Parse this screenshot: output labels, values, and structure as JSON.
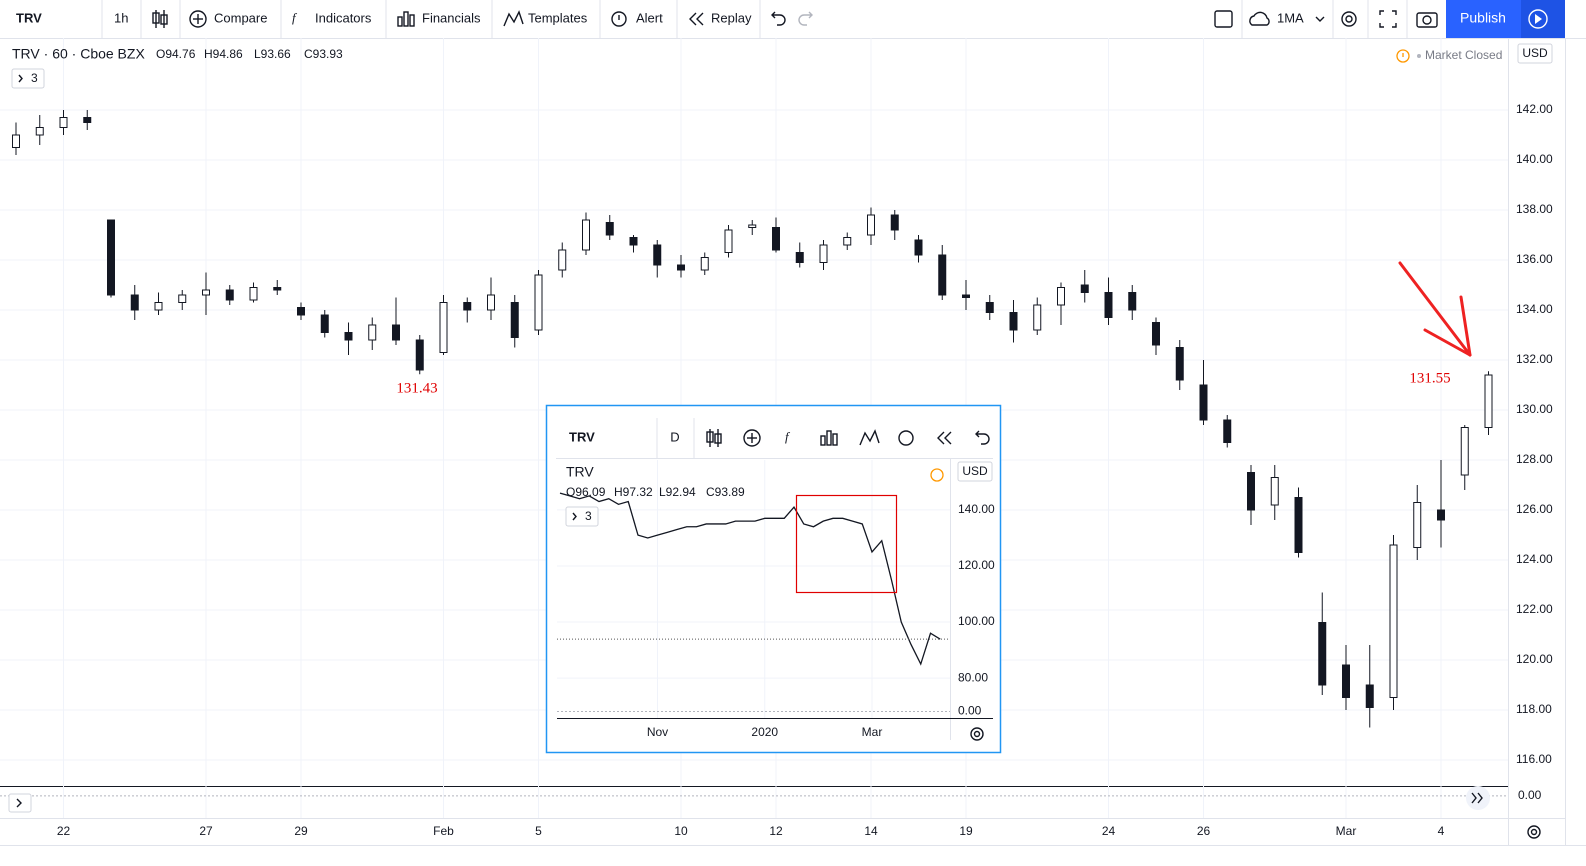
{
  "toolbar": {
    "symbol": "TRV",
    "interval": "1h",
    "items": [
      "Compare",
      "Indicators",
      "Financials",
      "Templates",
      "Alert",
      "Replay"
    ],
    "indicator": "1MA",
    "publish": "Publish"
  },
  "legend": {
    "title": "TRV · 60 · Cboe BZX",
    "ohlc": [
      "O94.76",
      "H94.86",
      "L93.66",
      "C93.93"
    ],
    "count": "3",
    "status": "Market Closed",
    "currency": "USD"
  },
  "inset": {
    "symbol": "TRV",
    "interval": "D",
    "title": "TRV",
    "ohlc": [
      "O96.09",
      "H97.32",
      "L92.94",
      "C93.89"
    ],
    "count": "3",
    "currency": "USD"
  },
  "chart_data": [
    {
      "type": "candlestick",
      "categories": [
        null,
        null,
        "22",
        null,
        null,
        null,
        null,
        null,
        "27",
        null,
        null,
        null,
        "29",
        null,
        null,
        null,
        null,
        null,
        "Feb",
        null,
        null,
        null,
        "5",
        null,
        null,
        null,
        null,
        null,
        "10",
        null,
        null,
        null,
        "12",
        null,
        null,
        null,
        "14",
        null,
        null,
        null,
        "19",
        null,
        null,
        null,
        null,
        null,
        "24",
        null,
        null,
        null,
        "26",
        null,
        null,
        null,
        null,
        null,
        "Mar",
        null,
        null,
        null,
        "4",
        null,
        null
      ],
      "open": [
        140.5,
        141.0,
        141.3,
        141.7,
        137.6,
        134.6,
        134.0,
        134.3,
        134.6,
        134.8,
        134.4,
        134.9,
        134.1,
        133.8,
        133.1,
        132.8,
        133.4,
        132.8,
        132.3,
        134.3,
        134.0,
        134.3,
        133.2,
        135.6,
        136.4,
        137.5,
        136.9,
        136.6,
        135.8,
        135.6,
        136.3,
        137.3,
        137.3,
        136.3,
        135.9,
        136.6,
        137.0,
        137.8,
        136.8,
        136.2,
        134.6,
        134.3,
        133.9,
        133.2,
        134.2,
        135.0,
        134.7,
        134.7,
        133.5,
        132.5,
        131.0,
        129.6,
        127.5,
        126.2,
        126.5,
        121.5,
        119.8,
        119.0,
        118.5,
        124.5,
        126.0,
        127.4,
        129.3
      ],
      "high": [
        141.5,
        141.8,
        142.0,
        142.0,
        137.6,
        135.0,
        134.7,
        134.8,
        135.5,
        135.0,
        135.1,
        135.2,
        134.3,
        134.0,
        133.5,
        133.7,
        134.5,
        133.0,
        134.6,
        134.5,
        135.3,
        134.6,
        135.6,
        136.7,
        137.9,
        137.8,
        137.0,
        136.8,
        136.2,
        136.3,
        137.4,
        137.6,
        137.7,
        136.7,
        136.8,
        137.1,
        138.1,
        138.0,
        137.0,
        136.6,
        135.2,
        134.6,
        134.4,
        134.5,
        135.1,
        135.6,
        135.3,
        135.0,
        133.7,
        132.8,
        132.0,
        129.8,
        127.8,
        127.8,
        126.9,
        122.7,
        120.6,
        120.6,
        125.0,
        127.0,
        128.0,
        129.4,
        131.55
      ],
      "low": [
        140.2,
        140.6,
        141.0,
        141.2,
        134.5,
        133.6,
        133.8,
        134.0,
        133.8,
        134.2,
        134.3,
        134.6,
        133.6,
        132.9,
        132.2,
        132.4,
        132.6,
        131.43,
        132.2,
        133.5,
        133.6,
        132.5,
        133.0,
        135.3,
        136.2,
        136.8,
        136.3,
        135.3,
        135.3,
        135.4,
        136.1,
        137.0,
        136.3,
        135.7,
        135.6,
        136.4,
        136.6,
        136.8,
        135.9,
        134.4,
        134.0,
        133.6,
        132.7,
        133.0,
        133.4,
        134.3,
        133.4,
        133.6,
        132.2,
        130.8,
        129.4,
        128.5,
        125.4,
        125.6,
        124.1,
        118.6,
        118.0,
        117.3,
        118.0,
        124.0,
        124.5,
        126.8,
        129.0
      ],
      "close": [
        141.0,
        141.3,
        141.7,
        141.5,
        134.6,
        134.0,
        134.3,
        134.6,
        134.8,
        134.4,
        134.9,
        134.8,
        133.8,
        133.1,
        132.8,
        133.4,
        132.8,
        131.6,
        134.3,
        134.0,
        134.6,
        132.9,
        135.4,
        136.4,
        137.6,
        137.0,
        136.6,
        135.8,
        135.6,
        136.1,
        137.2,
        137.4,
        136.4,
        135.9,
        136.6,
        136.9,
        137.8,
        137.2,
        136.2,
        134.6,
        134.5,
        133.9,
        133.2,
        134.2,
        134.9,
        134.7,
        133.7,
        134.0,
        132.6,
        131.2,
        129.6,
        128.7,
        126.0,
        127.3,
        124.3,
        119.0,
        118.5,
        118.1,
        124.6,
        126.3,
        125.6,
        129.3,
        131.4
      ],
      "ylim": [
        115,
        144.8
      ],
      "yticks": [
        {
          "value": 116,
          "label": "116.00"
        },
        {
          "value": 118,
          "label": "118.00"
        },
        {
          "value": 120,
          "label": "120.00"
        },
        {
          "value": 122,
          "label": "122.00"
        },
        {
          "value": 124,
          "label": "124.00"
        },
        {
          "value": 126,
          "label": "126.00"
        },
        {
          "value": 128,
          "label": "128.00"
        },
        {
          "value": 130,
          "label": "130.00"
        },
        {
          "value": 132,
          "label": "132.00"
        },
        {
          "value": 134,
          "label": "134.00"
        },
        {
          "value": 136,
          "label": "136.00"
        },
        {
          "value": 138,
          "label": "138.00"
        },
        {
          "value": 140,
          "label": "140.00"
        },
        {
          "value": 142,
          "label": "142.00"
        }
      ],
      "annotations": [
        "131.43",
        "131.55"
      ],
      "up_color": "#ffffff",
      "down_color": "#131722",
      "grid": true
    },
    {
      "type": "line",
      "categories": [
        null,
        null,
        null,
        null,
        null,
        null,
        null,
        null,
        null,
        null,
        "Nov",
        null,
        null,
        null,
        null,
        null,
        null,
        null,
        null,
        null,
        null,
        "2020",
        null,
        null,
        null,
        null,
        null,
        null,
        null,
        null,
        null,
        null,
        "Mar",
        null,
        null,
        null,
        null,
        null,
        null,
        null
      ],
      "values": [
        146,
        145,
        144,
        145,
        143,
        144,
        142,
        143,
        131,
        130,
        131,
        132,
        133,
        134,
        134,
        135,
        135,
        135,
        136,
        136,
        136,
        137,
        137,
        137,
        141,
        135,
        134,
        136,
        137,
        137,
        136,
        135,
        125,
        129,
        115,
        100,
        92,
        85,
        96,
        93.89
      ],
      "color": "#131722",
      "ylim": [
        70.4,
        157.1
      ],
      "yticks": [
        {
          "value": 80,
          "label": "80.00"
        },
        {
          "value": 100,
          "label": "100.00"
        },
        {
          "value": 120,
          "label": "120.00"
        },
        {
          "value": 140,
          "label": "140.00"
        }
      ],
      "grid": true
    },
    {
      "type": "indicator",
      "ylim": [
        -2.5,
        1
      ],
      "yticks": [
        {
          "value": 0,
          "label": "0.00"
        }
      ]
    },
    {
      "type": "indicator",
      "ylim": [
        -1,
        1
      ],
      "yticks": [
        {
          "value": 0,
          "label": "0.00"
        }
      ]
    }
  ]
}
